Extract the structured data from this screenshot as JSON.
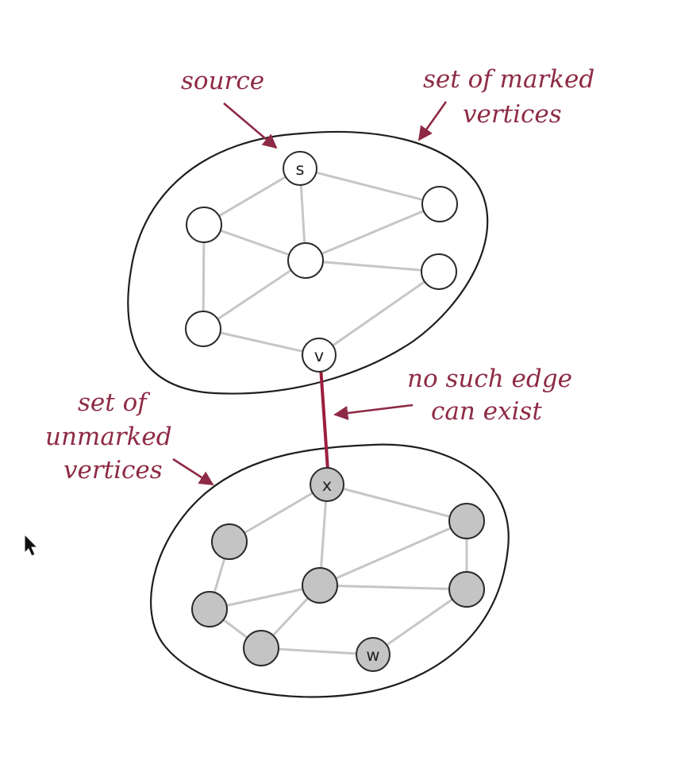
{
  "colors": {
    "annotation": "#8e2a45",
    "marked_vertex_fill": "#ffffff",
    "unmarked_vertex_fill": "#c4c4c4",
    "edge": "#c6c6c6",
    "crossing_edge": "#9a1f3c"
  },
  "annotations": {
    "source": "source",
    "marked_line1": "set of marked",
    "marked_line2": "vertices",
    "unmarked_line1": "set of",
    "unmarked_line2": "unmarked",
    "unmarked_line3": "vertices",
    "edge_line1": "no such edge",
    "edge_line2": "can exist"
  },
  "vertices": {
    "s": "s",
    "v": "v",
    "x": "x",
    "w": "w"
  },
  "cursor": "arrow-cursor-icon"
}
